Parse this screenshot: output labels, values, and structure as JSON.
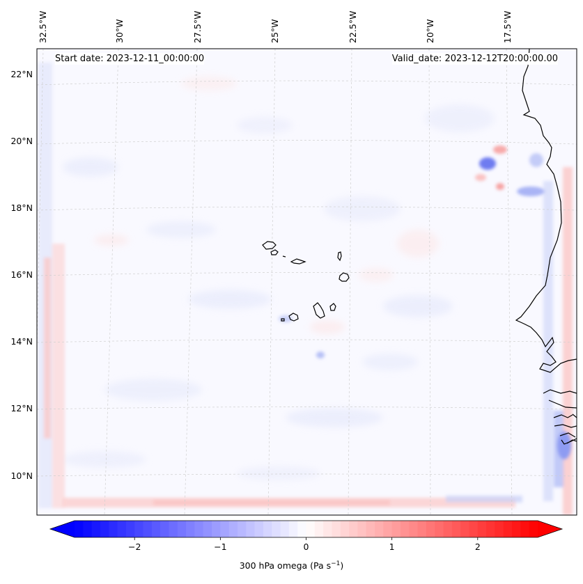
{
  "map": {
    "variable_label": "300 hPa omega (Pa s",
    "unit_exponent": "−1",
    "unit_close": ")",
    "start_date": "Start date: 2023-12-11_00:00:00",
    "valid_date": "Valid_date: 2023-12-12T20:00:00.00",
    "lon_labels": [
      "32.5°W",
      "30°W",
      "27.5°W",
      "25°W",
      "22.5°W",
      "20°W",
      "17.5°W"
    ],
    "lat_labels": [
      "22°N",
      "20°N",
      "18°N",
      "16°N",
      "14°N",
      "12°N",
      "10°N"
    ],
    "colorbar": {
      "min": -2.7,
      "max": 2.7,
      "ticks": [
        "−2",
        "−1",
        "0",
        "1",
        "2"
      ],
      "tick_values": [
        -2,
        -1,
        0,
        1,
        2
      ],
      "colormap": "bwr",
      "low_color": "#0000ff",
      "mid_color": "#ffffff",
      "high_color": "#ff0000"
    }
  }
}
